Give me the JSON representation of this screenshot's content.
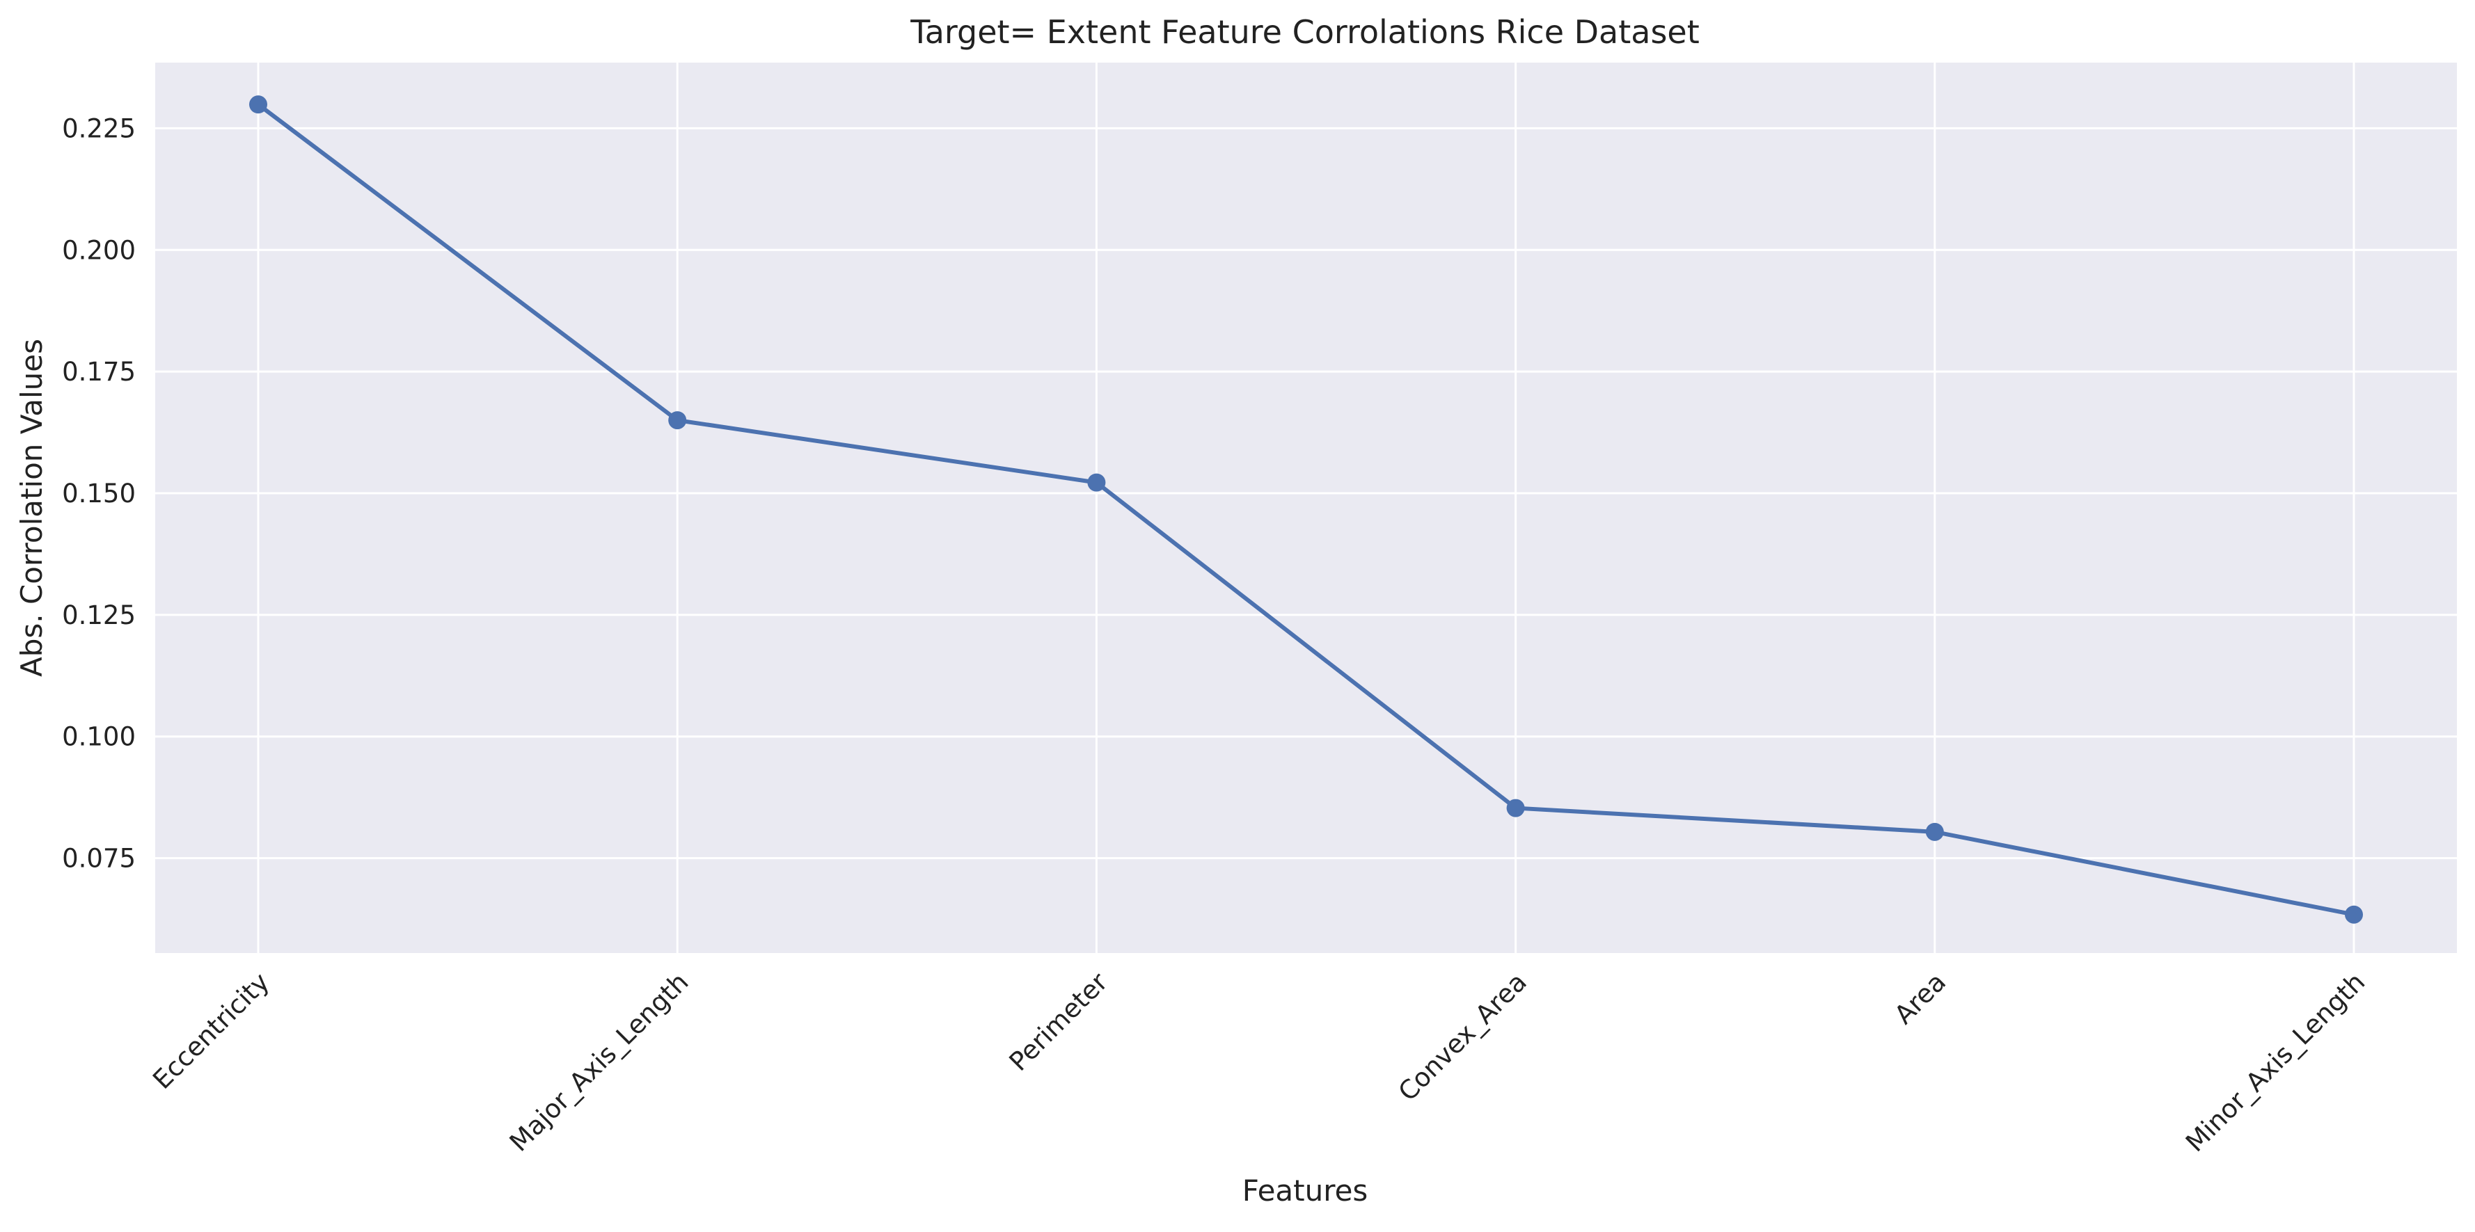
{
  "chart_data": {
    "type": "line",
    "title": "Target= Extent Feature Corrolations Rice Dataset",
    "xlabel": "Features",
    "ylabel": "Abs. Corrolation Values",
    "categories": [
      "Eccentricity",
      "Major_Axis_Length",
      "Perimeter",
      "Convex_Area",
      "Area",
      "Minor_Axis_Length"
    ],
    "series": [
      {
        "values": [
          0.2299,
          0.165,
          0.1522,
          0.0853,
          0.0804,
          0.0634
        ]
      }
    ],
    "ylim": [
      0.0555,
      0.2385
    ],
    "yticks": [
      0.075,
      0.1,
      0.125,
      0.15,
      0.175,
      0.2,
      0.225
    ],
    "ytick_labels": [
      "0.075",
      "0.100",
      "0.125",
      "0.150",
      "0.175",
      "0.200",
      "0.225"
    ],
    "grid": true,
    "colors": {
      "background": "#EAEAF2",
      "grid": "#FFFFFF",
      "line": "#4C72B0"
    }
  }
}
